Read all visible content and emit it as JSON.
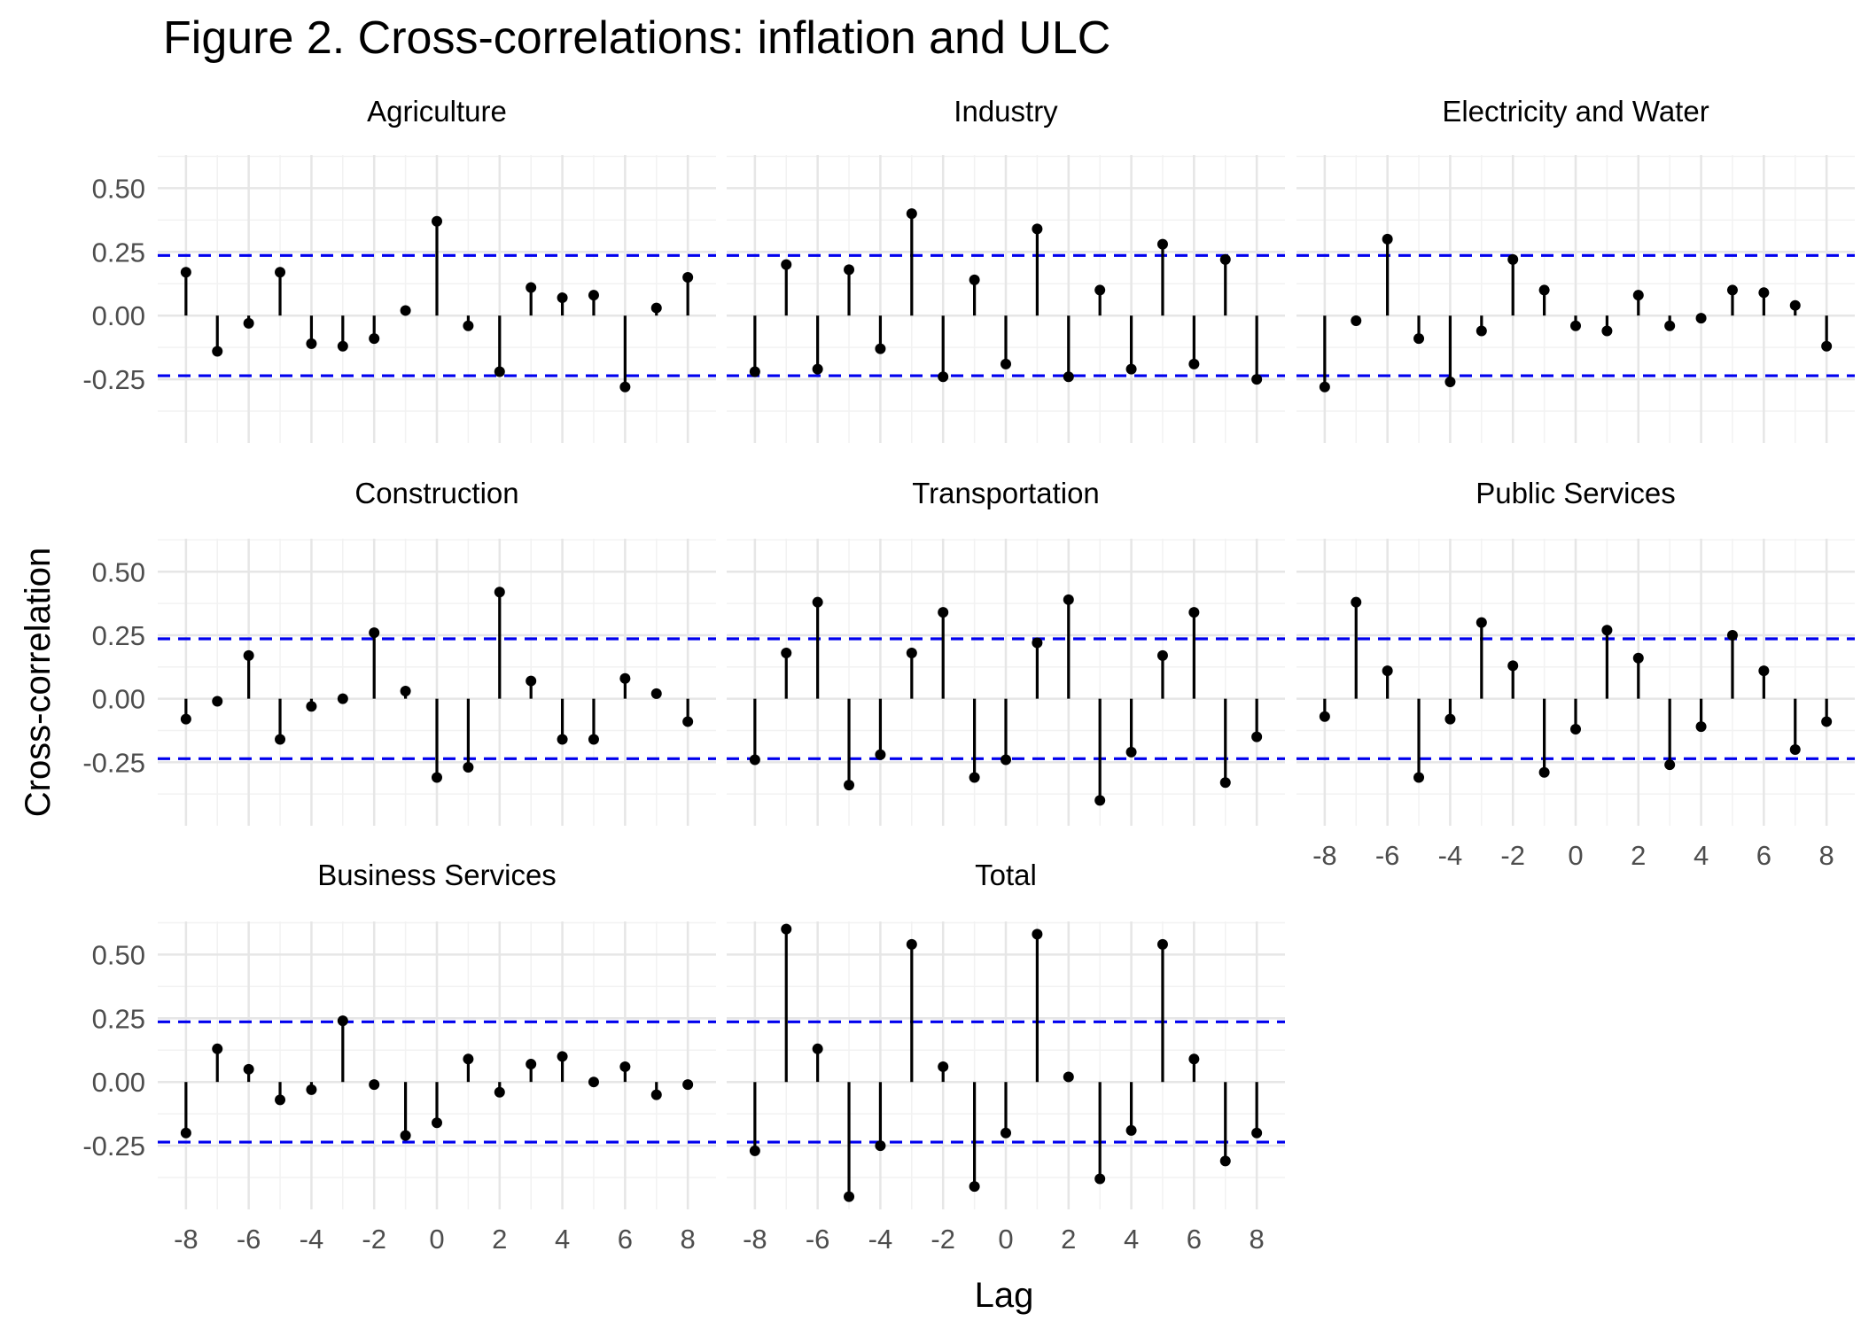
{
  "chart_data": {
    "type": "lollipop",
    "title": "Figure 2. Cross-correlations: inflation and ULC",
    "xlabel": "Lag",
    "ylabel": "Cross-correlation",
    "x": [
      -8,
      -7,
      -6,
      -5,
      -4,
      -3,
      -2,
      -1,
      0,
      1,
      2,
      3,
      4,
      5,
      6,
      7,
      8
    ],
    "x_ticks": [
      "-8",
      "-6",
      "-4",
      "-2",
      "0",
      "2",
      "4",
      "6",
      "8"
    ],
    "y_ticks": [
      "-0.25",
      "0.00",
      "0.25",
      "0.50"
    ],
    "ylim": [
      -0.5,
      0.63
    ],
    "xlim": [
      -8.9,
      8.9
    ],
    "confidence_band": [
      0.236,
      -0.236
    ],
    "colors": {
      "stem": "#000000",
      "point": "#000000",
      "band": "#0000ee",
      "grid_major": "#e6e6e6",
      "grid_minor": "#f2f2f2",
      "text": "#000000",
      "tick_text": "#4d4d4d"
    },
    "grid": true,
    "panels": [
      {
        "name": "Agriculture",
        "values": [
          0.17,
          -0.14,
          -0.03,
          0.17,
          -0.11,
          -0.12,
          -0.09,
          0.02,
          0.37,
          -0.04,
          -0.22,
          0.11,
          0.07,
          0.08,
          -0.28,
          0.03,
          0.15
        ]
      },
      {
        "name": "Industry",
        "values": [
          -0.22,
          0.2,
          -0.21,
          0.18,
          -0.13,
          0.4,
          -0.24,
          0.14,
          -0.19,
          0.34,
          -0.24,
          0.1,
          -0.21,
          0.28,
          -0.19,
          0.22,
          -0.25
        ]
      },
      {
        "name": "Electricity and Water",
        "values": [
          -0.28,
          -0.02,
          0.3,
          -0.09,
          -0.26,
          -0.06,
          0.22,
          0.1,
          -0.04,
          -0.06,
          0.08,
          -0.04,
          -0.01,
          0.1,
          0.09,
          0.04,
          -0.12
        ]
      },
      {
        "name": "Construction",
        "values": [
          -0.08,
          -0.01,
          0.17,
          -0.16,
          -0.03,
          0.0,
          0.26,
          0.03,
          -0.31,
          -0.27,
          0.42,
          0.07,
          -0.16,
          -0.16,
          0.08,
          0.02,
          -0.09
        ]
      },
      {
        "name": "Transportation",
        "values": [
          -0.24,
          0.18,
          0.38,
          -0.34,
          -0.22,
          0.18,
          0.34,
          -0.31,
          -0.24,
          0.22,
          0.39,
          -0.4,
          -0.21,
          0.17,
          0.34,
          -0.33,
          -0.15
        ]
      },
      {
        "name": "Public Services",
        "values": [
          -0.07,
          0.38,
          0.11,
          -0.31,
          -0.08,
          0.3,
          0.13,
          -0.29,
          -0.12,
          0.27,
          0.16,
          -0.26,
          -0.11,
          0.25,
          0.11,
          -0.2,
          -0.09
        ]
      },
      {
        "name": "Business Services",
        "values": [
          -0.2,
          0.13,
          0.05,
          -0.07,
          -0.03,
          0.24,
          -0.01,
          -0.21,
          -0.16,
          0.09,
          -0.04,
          0.07,
          0.1,
          0.0,
          0.06,
          -0.05,
          -0.01
        ]
      },
      {
        "name": "Total",
        "values": [
          -0.27,
          0.6,
          0.13,
          -0.45,
          -0.25,
          0.54,
          0.06,
          -0.41,
          -0.2,
          0.58,
          0.02,
          -0.38,
          -0.19,
          0.54,
          0.09,
          -0.31,
          -0.2
        ]
      }
    ]
  }
}
